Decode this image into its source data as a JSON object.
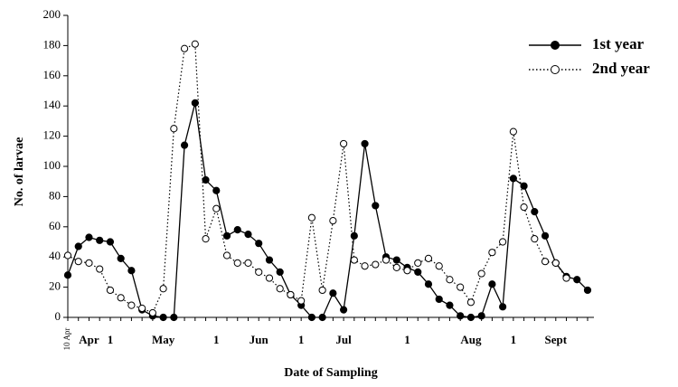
{
  "chart_data": {
    "type": "line",
    "x_label": "Date of Sampling",
    "y_label": "No. of larvae",
    "categories": [
      "10 Apr",
      null,
      "Apr",
      null,
      "1",
      null,
      null,
      null,
      null,
      "May",
      null,
      null,
      null,
      null,
      "1",
      null,
      null,
      null,
      "Jun",
      null,
      null,
      null,
      "1",
      null,
      null,
      null,
      "Jul",
      null,
      null,
      null,
      null,
      null,
      "1",
      null,
      null,
      null,
      null,
      null,
      "Aug",
      null,
      null,
      null,
      "1",
      null,
      null,
      null,
      "Sept",
      null,
      null,
      null
    ],
    "series": [
      {
        "name": "1st year",
        "color": "#000000",
        "line_style": "solid",
        "marker": "filled",
        "values": [
          28,
          47,
          53,
          51,
          50,
          39,
          31,
          5,
          1,
          0,
          0,
          114,
          142,
          91,
          84,
          54,
          58,
          55,
          49,
          38,
          30,
          15,
          8,
          0,
          0,
          16,
          5,
          54,
          115,
          74,
          40,
          38,
          33,
          30,
          22,
          12,
          8,
          1,
          0,
          1,
          22,
          7,
          92,
          87,
          70,
          54,
          36,
          27,
          25,
          18
        ]
      },
      {
        "name": "2nd year",
        "color": "#000000",
        "line_style": "dotted",
        "marker": "open",
        "values": [
          41,
          37,
          36,
          32,
          18,
          13,
          8,
          6,
          3,
          19,
          125,
          178,
          181,
          52,
          72,
          41,
          36,
          36,
          30,
          26,
          19,
          15,
          11,
          66,
          18,
          64,
          115,
          38,
          34,
          35,
          38,
          33,
          31,
          36,
          39,
          34,
          25,
          20,
          10,
          29,
          43,
          50,
          123,
          73,
          52,
          37,
          36,
          26,
          null,
          null
        ]
      }
    ],
    "ylim": [
      0,
      200
    ],
    "yticks": [
      0,
      20,
      40,
      60,
      80,
      100,
      120,
      140,
      160,
      180,
      200
    ],
    "grid": false,
    "legend": "upper right"
  }
}
